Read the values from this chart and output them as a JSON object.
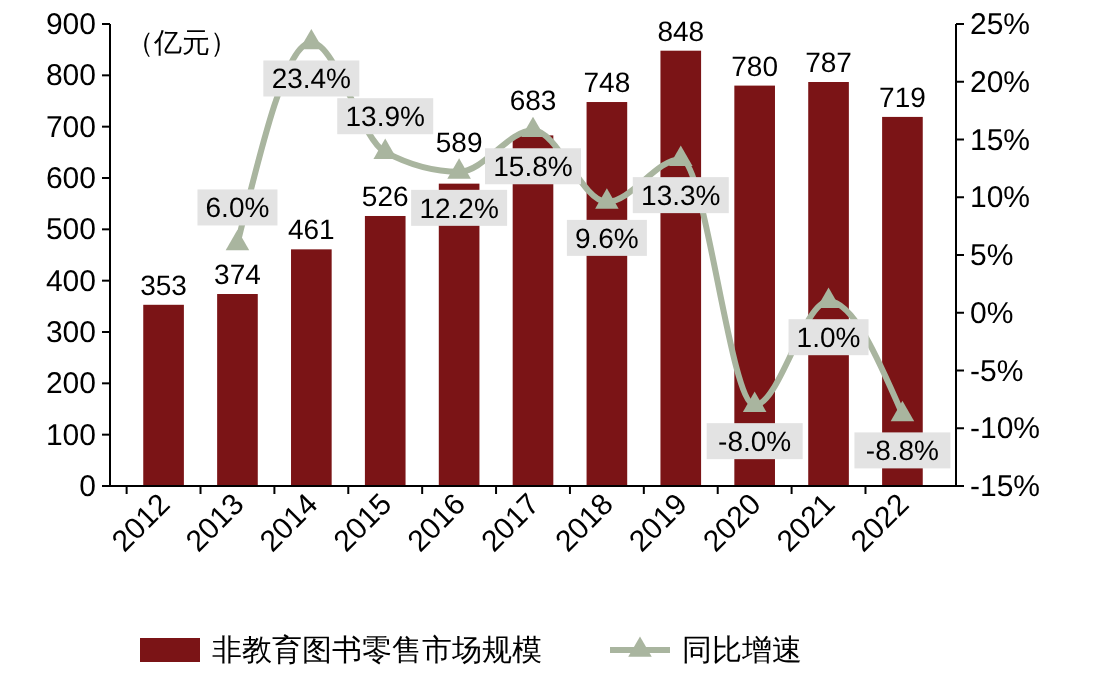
{
  "chart_data": {
    "type": "bar",
    "categories": [
      "2012",
      "2013",
      "2014",
      "2015",
      "2016",
      "2017",
      "2018",
      "2019",
      "2020",
      "2021",
      "2022"
    ],
    "series": [
      {
        "name": "非教育图书零售市场规模",
        "color": "#7b1416",
        "values": [
          353,
          374,
          461,
          526,
          589,
          683,
          748,
          848,
          780,
          787,
          719
        ]
      },
      {
        "name": "同比增速",
        "type": "line",
        "axis": "y2",
        "color": "#a9b59f",
        "marker": "triangle",
        "values": [
          null,
          6.0,
          23.4,
          13.9,
          12.2,
          15.8,
          9.6,
          13.3,
          -8.0,
          1.0,
          -8.8
        ],
        "value_labels": [
          null,
          "6.0%",
          "23.4%",
          "13.9%",
          "12.2%",
          "15.8%",
          "9.6%",
          "13.3%",
          "-8.0%",
          "1.0%",
          "-8.8%"
        ]
      }
    ],
    "ylim": [
      0,
      900
    ],
    "yticks": [
      0,
      100,
      200,
      300,
      400,
      500,
      600,
      700,
      800,
      900
    ],
    "y2lim": [
      -15,
      25
    ],
    "y2ticks": [
      {
        "value": -15,
        "label": "-15%"
      },
      {
        "value": -10,
        "label": "-10%"
      },
      {
        "value": -5,
        "label": "-5%"
      },
      {
        "value": 0,
        "label": "0%"
      },
      {
        "value": 5,
        "label": "5%"
      },
      {
        "value": 10,
        "label": "10%"
      },
      {
        "value": 15,
        "label": "15%"
      },
      {
        "value": 20,
        "label": "20%"
      },
      {
        "value": 25,
        "label": "25%"
      }
    ],
    "annotations": [
      "（亿元）"
    ],
    "data_labels": true,
    "legend": "bottom",
    "grid": false
  }
}
